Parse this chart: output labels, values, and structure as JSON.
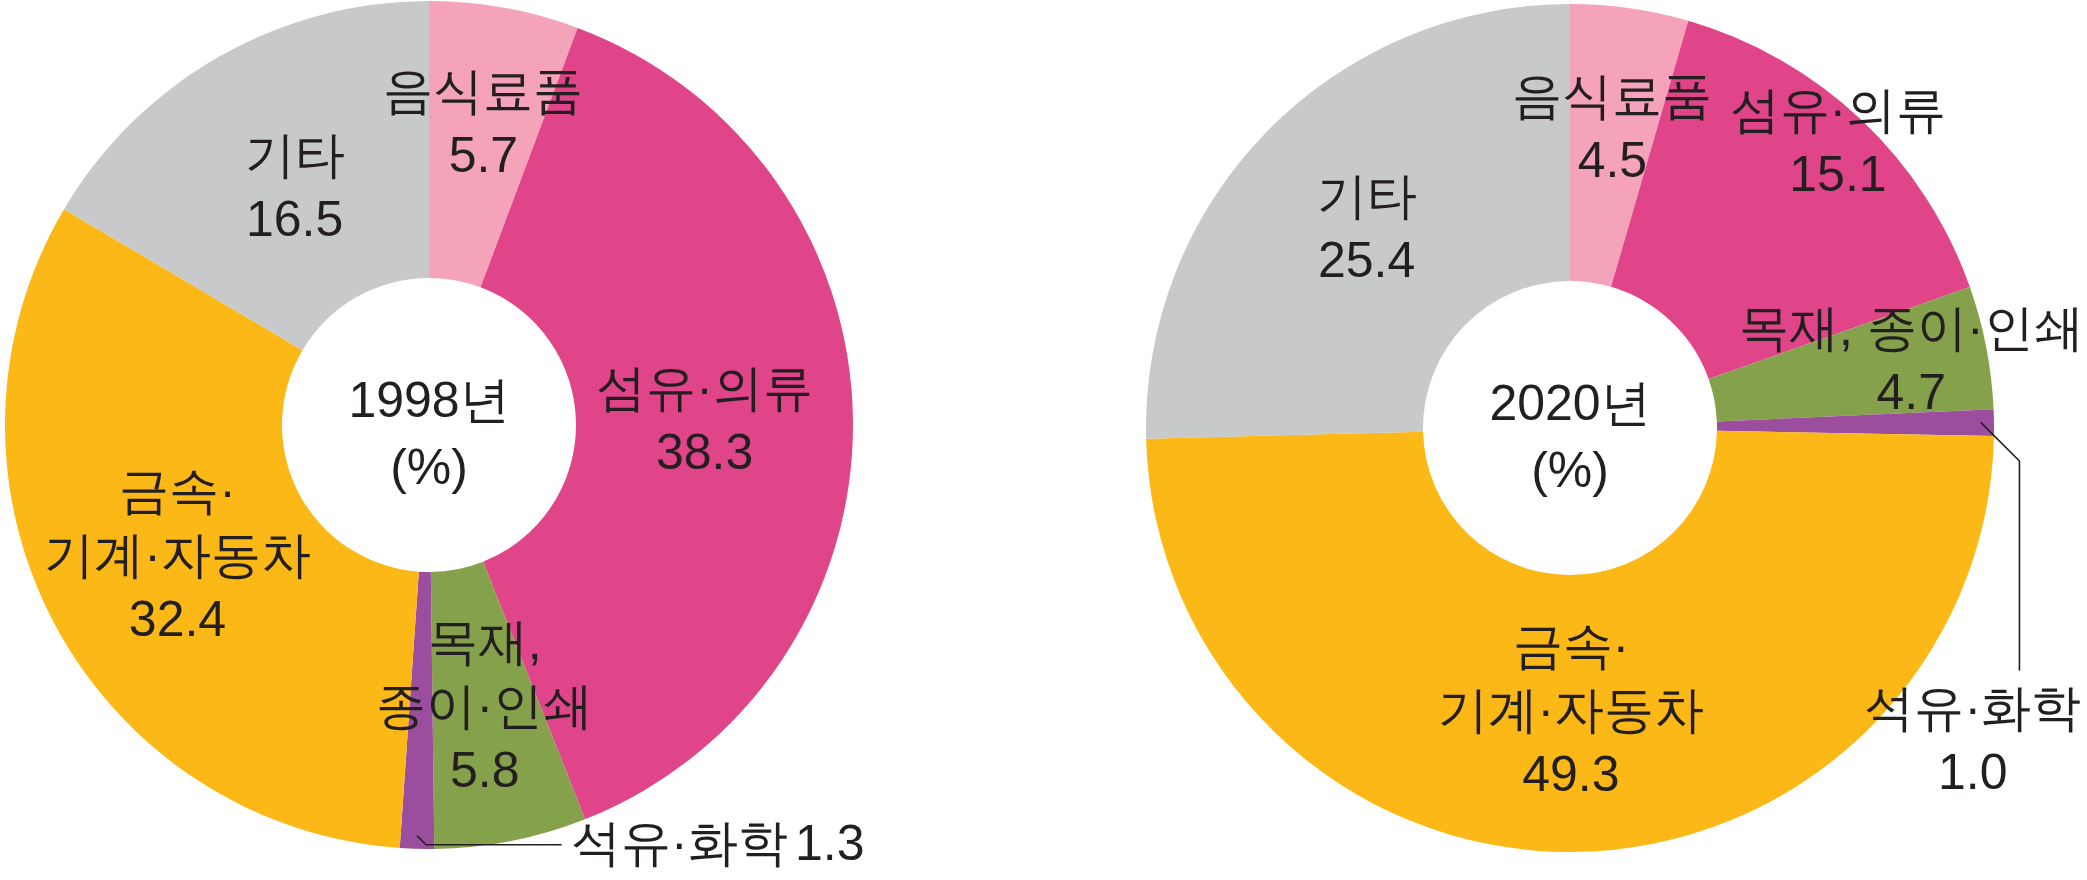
{
  "chart_data": [
    {
      "type": "donut",
      "title": "1998년",
      "subtitle": "(%)",
      "categories": [
        "음식료품",
        "섬유·의류",
        "목재,\n종이·인쇄",
        "석유·화학",
        "금속·\n기계·자동차",
        "기타"
      ],
      "values": [
        5.7,
        38.3,
        5.8,
        1.3,
        32.4,
        16.5
      ],
      "value_labels": [
        "5.7",
        "38.3",
        "5.8",
        "1.3",
        "32.4",
        "16.5"
      ],
      "colors": [
        "#f5a3ba",
        "#e0458a",
        "#86a14b",
        "#9b4e9d",
        "#fbb817",
        "#c8c9cb"
      ]
    },
    {
      "type": "donut",
      "title": "2020년",
      "subtitle": "(%)",
      "categories": [
        "음식료품",
        "섬유·의류",
        "목재, 종이·인쇄",
        "석유·화학",
        "금속·\n기계·자동차",
        "기타"
      ],
      "values": [
        4.5,
        15.1,
        4.7,
        1.0,
        49.3,
        25.4
      ],
      "value_labels": [
        "4.5",
        "15.1",
        "4.7",
        "1.0",
        "49.3",
        "25.4"
      ],
      "colors": [
        "#f5a3ba",
        "#e0458a",
        "#86a14b",
        "#9b4e9d",
        "#fbb817",
        "#c8c9cb"
      ]
    }
  ]
}
